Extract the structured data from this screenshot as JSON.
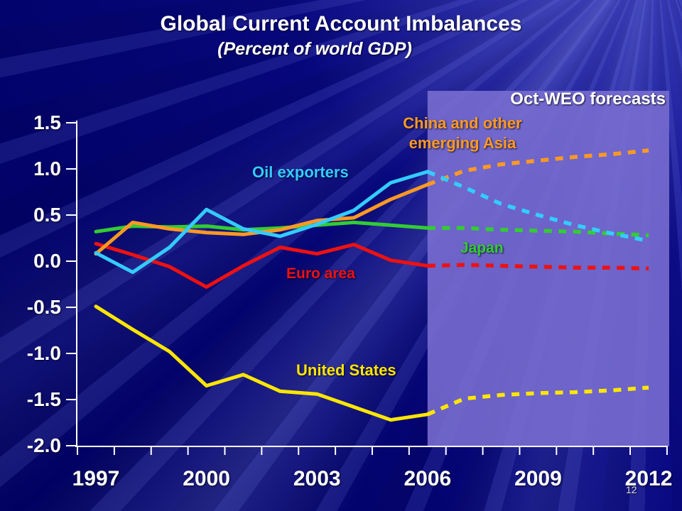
{
  "slide": {
    "title": "Global Current Account Imbalances",
    "subtitle": "(Percent of world GDP)",
    "page_number": "12",
    "background_color": "#00006A",
    "forecast_region_color": "#7A6ED2",
    "axis_color": "#FFFFFF"
  },
  "chart_data": {
    "type": "line",
    "title": "Global Current Account Imbalances",
    "subtitle": "(Percent of world GDP)",
    "xlabel": "",
    "ylabel": "",
    "ylim": [
      -2.0,
      1.5
    ],
    "ytick_labels": [
      "1.5",
      "1.0",
      "0.5",
      "0.0",
      "-0.5",
      "-1.0",
      "-1.5",
      "-2.0"
    ],
    "ytick_values": [
      1.5,
      1.0,
      0.5,
      0.0,
      -0.5,
      -1.0,
      -1.5,
      -2.0
    ],
    "x": [
      1997,
      1998,
      1999,
      2000,
      2001,
      2002,
      2003,
      2004,
      2005,
      2006,
      2007,
      2008,
      2009,
      2010,
      2011,
      2012
    ],
    "xtick_labels": [
      "1997",
      "2000",
      "2003",
      "2006",
      "2009",
      "2012"
    ],
    "xtick_years": [
      1997,
      2000,
      2003,
      2006,
      2009,
      2012
    ],
    "grid": false,
    "legend_position": "inline-labels",
    "forecast_label": "Oct-WEO forecasts",
    "forecast_start_year": 2006,
    "forecast_line_style": "dashed",
    "series": [
      {
        "name": "United States",
        "color": "#FFE600",
        "values": [
          -0.49,
          -0.74,
          -0.98,
          -1.35,
          -1.23,
          -1.41,
          -1.44,
          -1.58,
          -1.72,
          -1.66,
          -1.49,
          -1.45,
          -1.43,
          -1.42,
          -1.4,
          -1.37
        ]
      },
      {
        "name": "Euro area",
        "color": "#EE1111",
        "values": [
          0.19,
          0.07,
          -0.06,
          -0.28,
          -0.05,
          0.15,
          0.08,
          0.18,
          0.01,
          -0.05,
          -0.04,
          -0.05,
          -0.06,
          -0.07,
          -0.07,
          -0.08
        ]
      },
      {
        "name": "Japan",
        "color": "#33CC33",
        "values": [
          0.32,
          0.38,
          0.37,
          0.38,
          0.34,
          0.36,
          0.39,
          0.42,
          0.39,
          0.36,
          0.36,
          0.34,
          0.33,
          0.32,
          0.3,
          0.28
        ]
      },
      {
        "name": "Oil exporters",
        "color": "#33CCFF",
        "values": [
          0.09,
          -0.12,
          0.15,
          0.56,
          0.35,
          0.27,
          0.4,
          0.55,
          0.85,
          0.97,
          0.8,
          0.62,
          0.5,
          0.39,
          0.3,
          0.22
        ]
      },
      {
        "name": "China and other emerging Asia",
        "label_lines": [
          "China and other",
          "emerging Asia"
        ],
        "color": "#FF9922",
        "values": [
          0.08,
          0.42,
          0.35,
          0.31,
          0.29,
          0.34,
          0.44,
          0.47,
          0.67,
          0.83,
          0.98,
          1.05,
          1.09,
          1.13,
          1.16,
          1.2
        ]
      }
    ]
  }
}
